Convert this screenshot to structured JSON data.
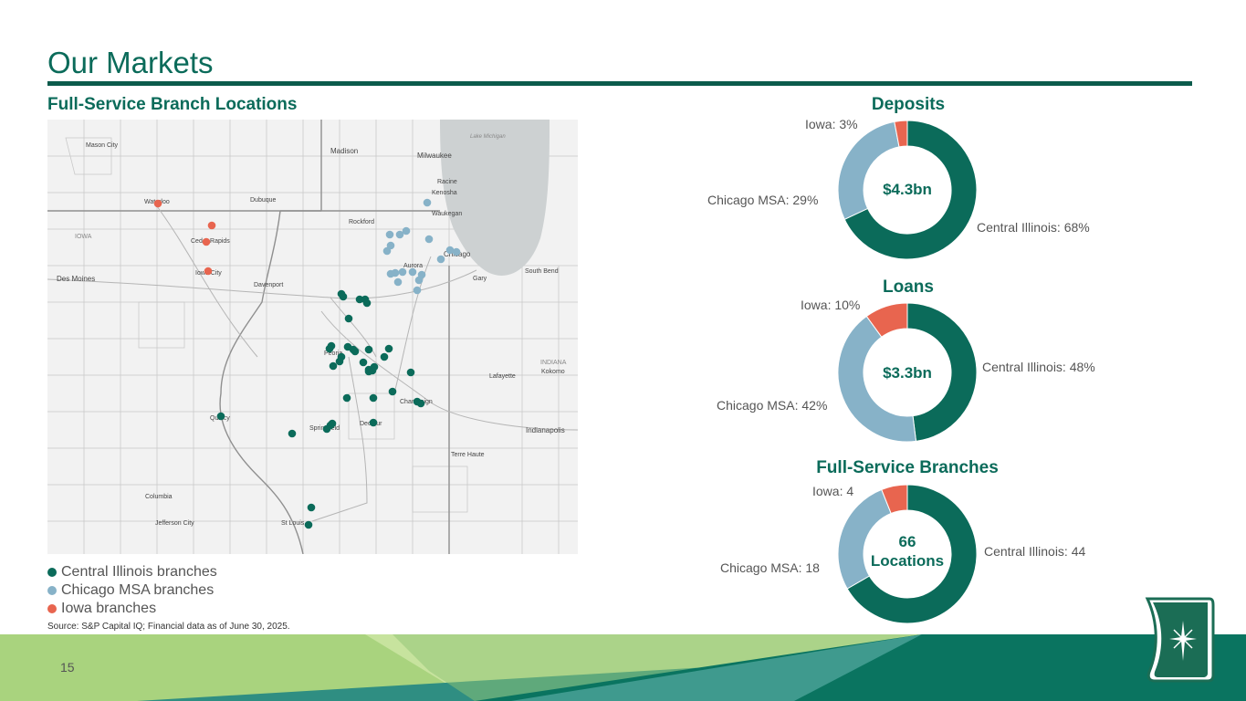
{
  "page": {
    "title": "Our Markets",
    "subtitle": "Full-Service Branch Locations",
    "source": "Source: S&P Capital IQ; Financial data as of June 30, 2025.",
    "page_number": "15"
  },
  "legend": [
    {
      "label": "Central Illinois branches",
      "color": "#0b6b5a"
    },
    {
      "label": "Chicago MSA branches",
      "color": "#87b2c8"
    },
    {
      "label": "Iowa branches",
      "color": "#e8654f"
    }
  ],
  "map_labels": [
    "Mason City",
    "Madison",
    "Milwaukee",
    "Lake Michigan",
    "Racine",
    "Kenosha",
    "Waukegan",
    "Waterloo",
    "Dubuque",
    "Rockford",
    "Chicago",
    "IOWA",
    "Cedar Rapids",
    "Iowa City",
    "Des Moines",
    "Davenport",
    "Aurora",
    "Gary",
    "South Bend",
    "Peoria",
    "INDIANA",
    "Lafayette",
    "Kokomo",
    "Quincy",
    "Springfield",
    "Decatur",
    "Champaign",
    "Indianapolis",
    "Terre Haute",
    "Columbia",
    "Jefferson City",
    "St Louis"
  ],
  "chart_data": [
    {
      "type": "pie",
      "title": "Deposits",
      "center_label": "$4.3bn",
      "categories": [
        "Central Illinois",
        "Chicago MSA",
        "Iowa"
      ],
      "values": [
        68,
        29,
        3
      ],
      "labels": [
        "Central Illinois: 68%",
        "Chicago MSA: 29%",
        "Iowa: 3%"
      ],
      "colors": [
        "#0b6b5a",
        "#87b2c8",
        "#e8654f"
      ]
    },
    {
      "type": "pie",
      "title": "Loans",
      "center_label": "$3.3bn",
      "categories": [
        "Central Illinois",
        "Chicago MSA",
        "Iowa"
      ],
      "values": [
        48,
        42,
        10
      ],
      "labels": [
        "Central Illinois: 48%",
        "Chicago MSA: 42%",
        "Iowa: 10%"
      ],
      "colors": [
        "#0b6b5a",
        "#87b2c8",
        "#e8654f"
      ]
    },
    {
      "type": "pie",
      "title": "Full-Service Branches",
      "center_label_line1": "66",
      "center_label_line2": "Locations",
      "categories": [
        "Central Illinois",
        "Chicago MSA",
        "Iowa"
      ],
      "values": [
        44,
        18,
        4
      ],
      "labels": [
        "Central Illinois: 44",
        "Chicago MSA: 18",
        "Iowa: 4"
      ],
      "colors": [
        "#0b6b5a",
        "#87b2c8",
        "#e8654f"
      ]
    }
  ]
}
